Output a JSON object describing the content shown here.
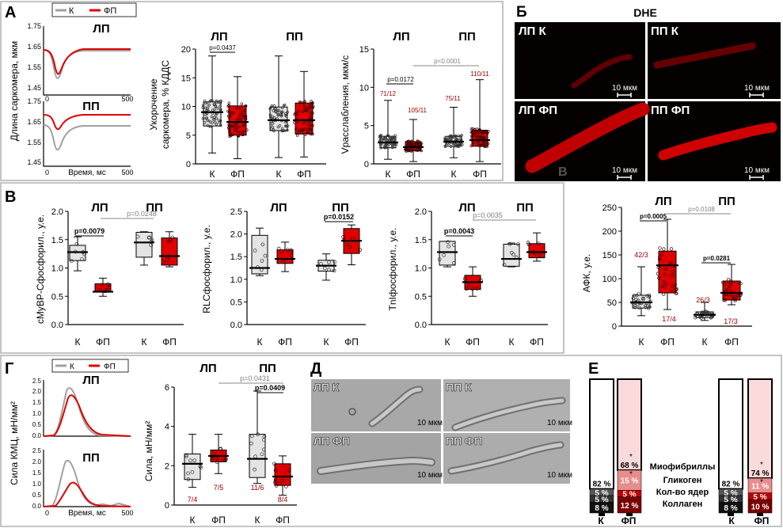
{
  "panels": {
    "A": {
      "letter": "А",
      "legend": {
        "k": "К",
        "fp": "ФП"
      },
      "trace_lp": {
        "title": "ЛП"
      },
      "trace_pp": {
        "title": "ПП"
      },
      "trace_ylabel": "Длина саркомера, мкм",
      "trace_yticks": [
        "1.75",
        "1.65",
        "1.55",
        "1.45"
      ],
      "trace_xlabel": "Время, мс",
      "trace_xticks": [
        "0",
        "500"
      ],
      "shortening": {
        "ylabel_line1": "Укорочение",
        "ylabel_line2": "саркомера, % КДДС",
        "yticks": [
          "0",
          "5",
          "10",
          "15",
          "20"
        ],
        "groups": [
          "ЛП",
          "ПП"
        ],
        "xlabels": [
          "К",
          "ФП",
          "К",
          "ФП"
        ],
        "pvalue": "p=0.0437"
      },
      "relaxation": {
        "ylabel": "Vрасслабления, мкм/с",
        "yticks": [
          "0",
          "5",
          "10",
          "15"
        ],
        "groups": [
          "ЛП",
          "ПП"
        ],
        "xlabels": [
          "К",
          "ФП",
          "К",
          "ФП"
        ],
        "p1": "p=0.0172",
        "p2": "p<0.0001",
        "n": [
          "71/12",
          "105/11",
          "75/11",
          "110/11"
        ]
      }
    },
    "B": {
      "letter": "Б",
      "title": "DHE",
      "labels": [
        "ЛП К",
        "ПП К",
        "ЛП ФП",
        "ПП ФП"
      ],
      "scale": "10 мкм",
      "faint": "В"
    },
    "V": {
      "letter": "В",
      "groups": [
        "ЛП",
        "ПП"
      ],
      "xlabels": [
        "К",
        "ФП",
        "К",
        "ФП"
      ],
      "cmybp": {
        "ylabel": "cMyBP-Cфосфорил., у.е.",
        "yticks": [
          "0.0",
          "0.5",
          "1.0",
          "1.5",
          "2.0"
        ],
        "p1": "p=0.0079",
        "p2": "p=0.0248"
      },
      "rlc": {
        "ylabel": "RLCфосфорил., у.е.",
        "yticks": [
          "0.0",
          "0.5",
          "1.0",
          "1.5",
          "2.0",
          "2.5"
        ],
        "p1": "p=0.0152"
      },
      "tni": {
        "ylabel": "TnIфосфорил., у.е.",
        "yticks": [
          "0.0",
          "0.5",
          "1.0",
          "1.5",
          "2.0"
        ],
        "p1": "p=0.0043",
        "p2": "p=0.0035"
      },
      "afk": {
        "ylabel": "АФК, у.е.",
        "yticks": [
          "0",
          "50",
          "100",
          "150",
          "200",
          "250"
        ],
        "p1": "p=0.0005",
        "p2": "p=0.0108",
        "p3": "p=0.0281",
        "n": [
          "42/3",
          "17/4",
          "26/3",
          "17/3"
        ]
      }
    },
    "G": {
      "letter": "Г",
      "legend": {
        "k": "К",
        "fp": "ФП"
      },
      "trace_lp": {
        "title": "ЛП"
      },
      "trace_pp": {
        "title": "ПП"
      },
      "trace_ylabel": "Сила КМЦ, мН/мм²",
      "trace_yticks": [
        "2.5",
        "2.0",
        "1.5",
        "1.0",
        "0.5",
        "0.0"
      ],
      "trace_xlabel": "Время, мс",
      "trace_xticks": [
        "0",
        "500"
      ],
      "force": {
        "ylabel": "Сила, мН/мм²",
        "yticks": [
          "0",
          "2",
          "4",
          "6"
        ],
        "groups": [
          "ЛП",
          "ПП"
        ],
        "xlabels": [
          "К",
          "ФП",
          "К",
          "ФП"
        ],
        "p1": "p=0.0431",
        "p2": "p=0.0409",
        "n": [
          "7/4",
          "7/5",
          "11/6",
          "8/4"
        ]
      }
    },
    "D": {
      "letter": "Д",
      "labels": [
        "ЛП К",
        "ПП К",
        "ЛП ФП",
        "ПП ФП"
      ],
      "scale": "10 мкм"
    },
    "E": {
      "letter": "Е",
      "legend": [
        "Миофибриллы",
        "Гликоген",
        "Кол-во ядер",
        "Коллаген"
      ],
      "xlabels": [
        "К",
        "ФП",
        "К",
        "ФП"
      ],
      "left": {
        "k": [
          "82 %",
          "5 %",
          "5 %",
          "8 %"
        ],
        "fp": [
          "68 %",
          "15 %",
          "5 %",
          "12 %"
        ]
      },
      "right": {
        "k": [
          "82 %",
          "5 %",
          "5 %",
          "8 %"
        ],
        "fp": [
          "74 %",
          "11 %",
          "5 %",
          "10 %"
        ]
      },
      "star": "*"
    }
  },
  "chart_data": [
    {
      "type": "line",
      "title": "ЛП",
      "xlabel": "Время, мс",
      "ylabel": "Длина саркомера, мкм",
      "xlim": [
        0,
        500
      ],
      "ylim": [
        1.45,
        1.75
      ],
      "series": [
        {
          "name": "К",
          "minimum": 1.5,
          "baseline": 1.63
        },
        {
          "name": "ФП",
          "minimum": 1.52,
          "baseline": 1.63
        }
      ],
      "colors": {
        "К": "#a0a0a0",
        "ФП": "#e00000"
      }
    },
    {
      "type": "line",
      "title": "ПП",
      "xlabel": "Время, мс",
      "ylabel": "Длина саркомера, мкм",
      "xlim": [
        0,
        500
      ],
      "ylim": [
        1.45,
        1.75
      ],
      "series": [
        {
          "name": "К",
          "minimum": 1.53,
          "baseline": 1.64
        },
        {
          "name": "ФП",
          "minimum": 1.6,
          "baseline": 1.68
        }
      ]
    },
    {
      "type": "box",
      "ylabel": "Укорочение саркомера, % КДДС",
      "ylim": [
        0,
        20
      ],
      "categories": [
        "ЛП К",
        "ЛП ФП",
        "ПП К",
        "ПП ФП"
      ],
      "median": [
        9.0,
        7.3,
        7.6,
        7.6
      ],
      "q1": [
        6.6,
        5.0,
        5.8,
        5.2
      ],
      "q3": [
        10.8,
        10.1,
        9.9,
        10.6
      ],
      "min": [
        1.9,
        0.9,
        1.1,
        1.2
      ],
      "max": [
        18.8,
        15.2,
        18.8,
        16.1
      ]
    },
    {
      "type": "box",
      "ylabel": "Vрасслабления, мкм/с",
      "ylim": [
        0,
        15
      ],
      "categories": [
        "ЛП К",
        "ЛП ФП",
        "ПП К",
        "ПП ФП"
      ],
      "median": [
        2.8,
        2.2,
        2.9,
        3.1
      ],
      "q1": [
        2.1,
        1.7,
        2.3,
        2.3
      ],
      "q3": [
        3.6,
        2.9,
        3.6,
        4.4
      ],
      "min": [
        0.6,
        0.3,
        0.8,
        0.3
      ],
      "max": [
        8.3,
        5.8,
        7.4,
        11.0
      ]
    },
    {
      "type": "box",
      "ylabel": "cMyBP-Cфосфорил., у.е.",
      "ylim": [
        0,
        2
      ],
      "categories": [
        "ЛП К",
        "ЛП ФП",
        "ПП К",
        "ПП ФП"
      ],
      "median": [
        1.28,
        0.58,
        1.45,
        1.21
      ],
      "q1": [
        1.13,
        0.58,
        1.19,
        1.05
      ],
      "q3": [
        1.4,
        0.72,
        1.63,
        1.53
      ],
      "min": [
        0.95,
        0.5,
        1.05,
        1.02
      ],
      "max": [
        1.55,
        0.82,
        1.64,
        1.64
      ]
    },
    {
      "type": "box",
      "ylabel": "RLCфосфорил., у.е.",
      "ylim": [
        0,
        2.5
      ],
      "categories": [
        "ЛП К",
        "ЛП ФП",
        "ПП К",
        "ПП ФП"
      ],
      "median": [
        1.25,
        1.45,
        1.3,
        1.85
      ],
      "q1": [
        1.12,
        1.35,
        1.18,
        1.57
      ],
      "q3": [
        1.97,
        1.65,
        1.42,
        2.12
      ],
      "min": [
        1.08,
        1.17,
        0.98,
        1.32
      ],
      "max": [
        2.13,
        1.82,
        1.56,
        2.2
      ]
    },
    {
      "type": "box",
      "ylabel": "TnIфосфорил., у.е.",
      "ylim": [
        0,
        2
      ],
      "categories": [
        "ЛП К",
        "ЛП ФП",
        "ПП К",
        "ПП ФП"
      ],
      "median": [
        1.28,
        0.75,
        1.16,
        1.28
      ],
      "q1": [
        1.05,
        0.62,
        1.03,
        1.18
      ],
      "q3": [
        1.47,
        0.87,
        1.42,
        1.43
      ],
      "min": [
        1.02,
        0.5,
        1.02,
        1.12
      ],
      "max": [
        1.47,
        1.02,
        1.44,
        1.62
      ]
    },
    {
      "type": "box",
      "ylabel": "АФК, у.е.",
      "ylim": [
        0,
        250
      ],
      "categories": [
        "ЛП К",
        "ЛП ФП",
        "ПП К",
        "ПП ФП"
      ],
      "median": [
        50,
        128,
        24,
        70
      ],
      "q1": [
        38,
        70,
        18,
        55
      ],
      "q3": [
        65,
        158,
        30,
        95
      ],
      "min": [
        22,
        35,
        12,
        45
      ],
      "max": [
        125,
        225,
        50,
        130
      ]
    },
    {
      "type": "line",
      "title": "ЛП",
      "xlabel": "Время, мс",
      "ylabel": "Сила КМЦ, мН/мм²",
      "xlim": [
        0,
        500
      ],
      "ylim": [
        0,
        2.5
      ],
      "series": [
        {
          "name": "К",
          "peak": 2.1
        },
        {
          "name": "ФП",
          "peak": 1.85
        }
      ]
    },
    {
      "type": "line",
      "title": "ПП",
      "xlabel": "Время, мс",
      "ylabel": "Сила КМЦ, мН/мм²",
      "xlim": [
        0,
        500
      ],
      "ylim": [
        0,
        2.5
      ],
      "series": [
        {
          "name": "К",
          "peak": 2.0
        },
        {
          "name": "ФП",
          "peak": 1.1
        }
      ]
    },
    {
      "type": "box",
      "ylabel": "Сила, мН/мм²",
      "ylim": [
        0,
        6
      ],
      "categories": [
        "ЛП К",
        "ЛП ФП",
        "ПП К",
        "ПП ФП"
      ],
      "median": [
        2.1,
        2.5,
        2.35,
        1.45
      ],
      "q1": [
        1.3,
        2.2,
        1.4,
        1.0
      ],
      "q3": [
        2.6,
        2.8,
        3.6,
        2.1
      ],
      "min": [
        0.9,
        1.6,
        1.1,
        0.5
      ],
      "max": [
        3.6,
        3.6,
        5.8,
        2.5
      ]
    },
    {
      "type": "bar",
      "stacked": true,
      "categories": [
        "ЛП К",
        "ЛП ФП",
        "ПП К",
        "ПП ФП"
      ],
      "series": [
        {
          "name": "Миофибриллы",
          "values": [
            82,
            68,
            82,
            74
          ]
        },
        {
          "name": "Гликоген",
          "values": [
            5,
            15,
            5,
            11
          ]
        },
        {
          "name": "Кол-во ядер",
          "values": [
            5,
            5,
            5,
            5
          ]
        },
        {
          "name": "Коллаген",
          "values": [
            8,
            12,
            8,
            10
          ]
        }
      ]
    }
  ]
}
